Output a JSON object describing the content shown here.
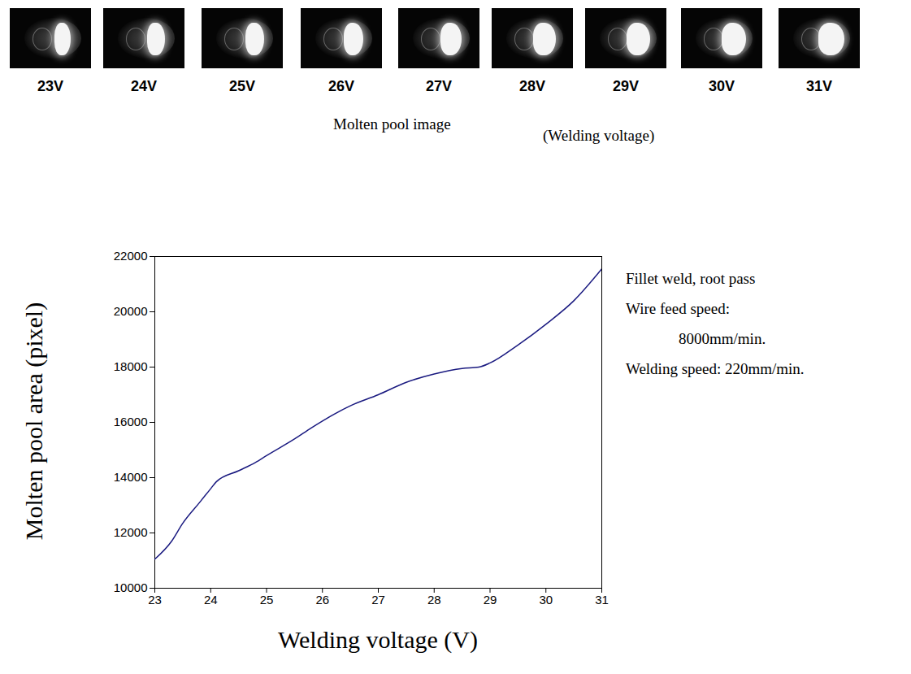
{
  "images": {
    "labels": [
      "23V",
      "24V",
      "25V",
      "26V",
      "27V",
      "28V",
      "29V",
      "30V",
      "31V"
    ],
    "caption": "Molten pool image",
    "subcaption": "(Welding voltage)"
  },
  "chart_data": {
    "type": "line",
    "x_label": "Welding voltage (V)",
    "y_label": "Molten pool area (pixel)",
    "annotations": [
      "Fillet weld, root pass",
      "Wire feed speed:",
      "8000mm/min.",
      "Welding speed: 220mm/min."
    ],
    "x": [
      23,
      23.3,
      23.5,
      23.8,
      24,
      24.1,
      24.5,
      24.8,
      25,
      25.5,
      25.8,
      26,
      26.5,
      27,
      27.5,
      28,
      28.5,
      28.8,
      29,
      29.5,
      30,
      30.5,
      31
    ],
    "values": [
      11050,
      11700,
      12350,
      13100,
      13600,
      13850,
      14250,
      14550,
      14800,
      15400,
      15800,
      16050,
      16600,
      17000,
      17450,
      17750,
      17950,
      18000,
      18150,
      18800,
      19550,
      20400,
      21550
    ],
    "color": "#1a1a80",
    "xlim": [
      23,
      31
    ],
    "xticks": [
      23,
      24,
      25,
      26,
      27,
      28,
      29,
      30,
      31
    ],
    "ylim": [
      10000,
      22000
    ],
    "yticks": [
      10000,
      12000,
      14000,
      16000,
      18000,
      20000,
      22000
    ],
    "grid": false
  }
}
